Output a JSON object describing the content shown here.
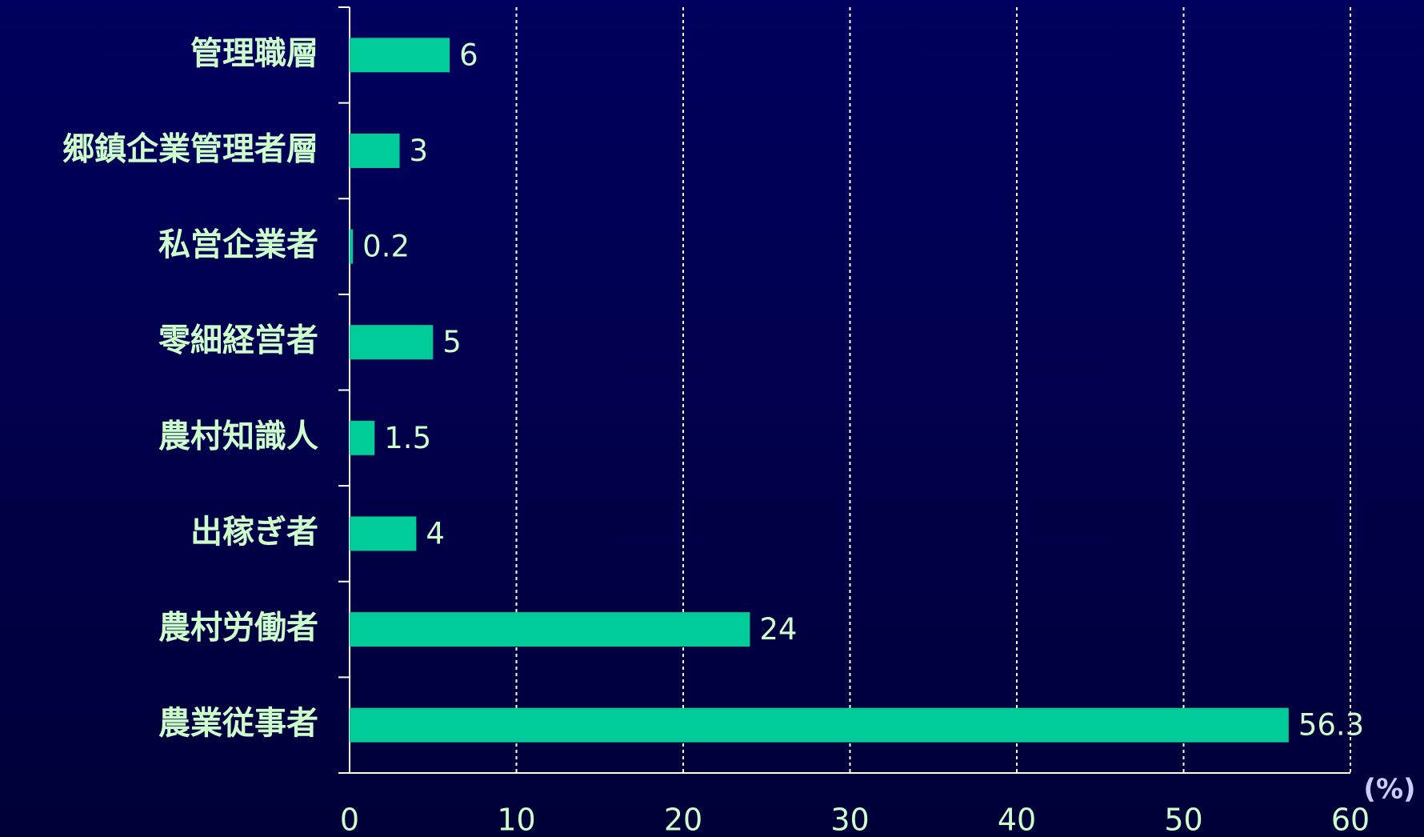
{
  "chart_data": {
    "type": "barh",
    "categories": [
      "管理職層",
      "郷鎮企業管理者層",
      "私営企業者",
      "零細経営者",
      "農村知識人",
      "出稼ぎ者",
      "農村労働者",
      "農業従事者"
    ],
    "values": [
      6,
      3,
      0.2,
      5,
      1.5,
      4,
      24,
      56.3
    ],
    "color": "#00cc99",
    "xlim": [
      0,
      60
    ],
    "xticks": [
      0,
      10,
      20,
      30,
      40,
      50,
      60
    ],
    "xlabel": "(%)",
    "grid": true
  }
}
